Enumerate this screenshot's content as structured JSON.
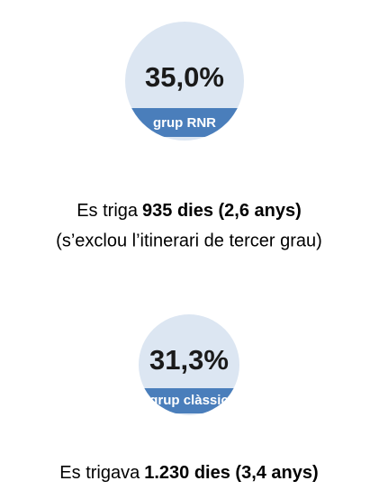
{
  "items": [
    {
      "percent": "35,0%",
      "group": "grup RNR",
      "text_normal": "Es triga",
      "text_bold": "935 dies (2,6 anys)",
      "note": "(s’exclou l’itinerari de tercer grau)"
    },
    {
      "percent": "31,3%",
      "group": "grup clàssic",
      "text_normal": "Es trigava",
      "text_bold": "1.230 dies (3,4 anys)"
    }
  ]
}
